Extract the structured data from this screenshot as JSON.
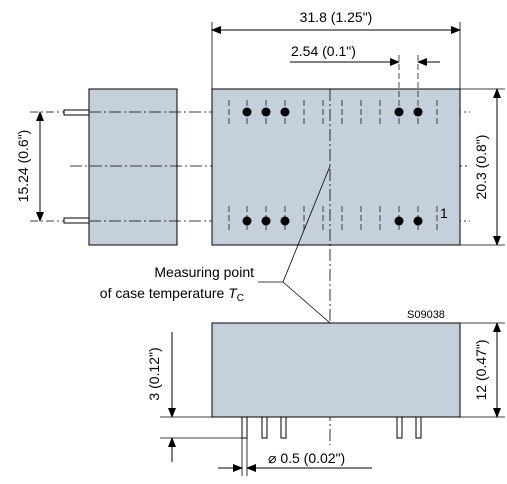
{
  "colors": {
    "body_fill": "#c5d0dd",
    "line": "#000000",
    "pin_fill": "#ffffff"
  },
  "dimensions": {
    "total_width": "31.8 (1.25\")",
    "pin_pitch": "2.54 (0.1\")",
    "body_height_top": "20.3 (0.8\")",
    "row_spacing": "15.24 (0.6\")",
    "body_height_side": "12 (0.47\")",
    "pin_length": "3 (0.12\")",
    "pin_diameter": "⌀ 0.5 (0.02\")"
  },
  "labels": {
    "measuring_point_line1": "Measuring point",
    "measuring_point_line2_prefix": "of case temperature",
    "temp_symbol": "T",
    "temp_subscript": "C",
    "figure_code": "S09038",
    "pin_one": "1"
  }
}
